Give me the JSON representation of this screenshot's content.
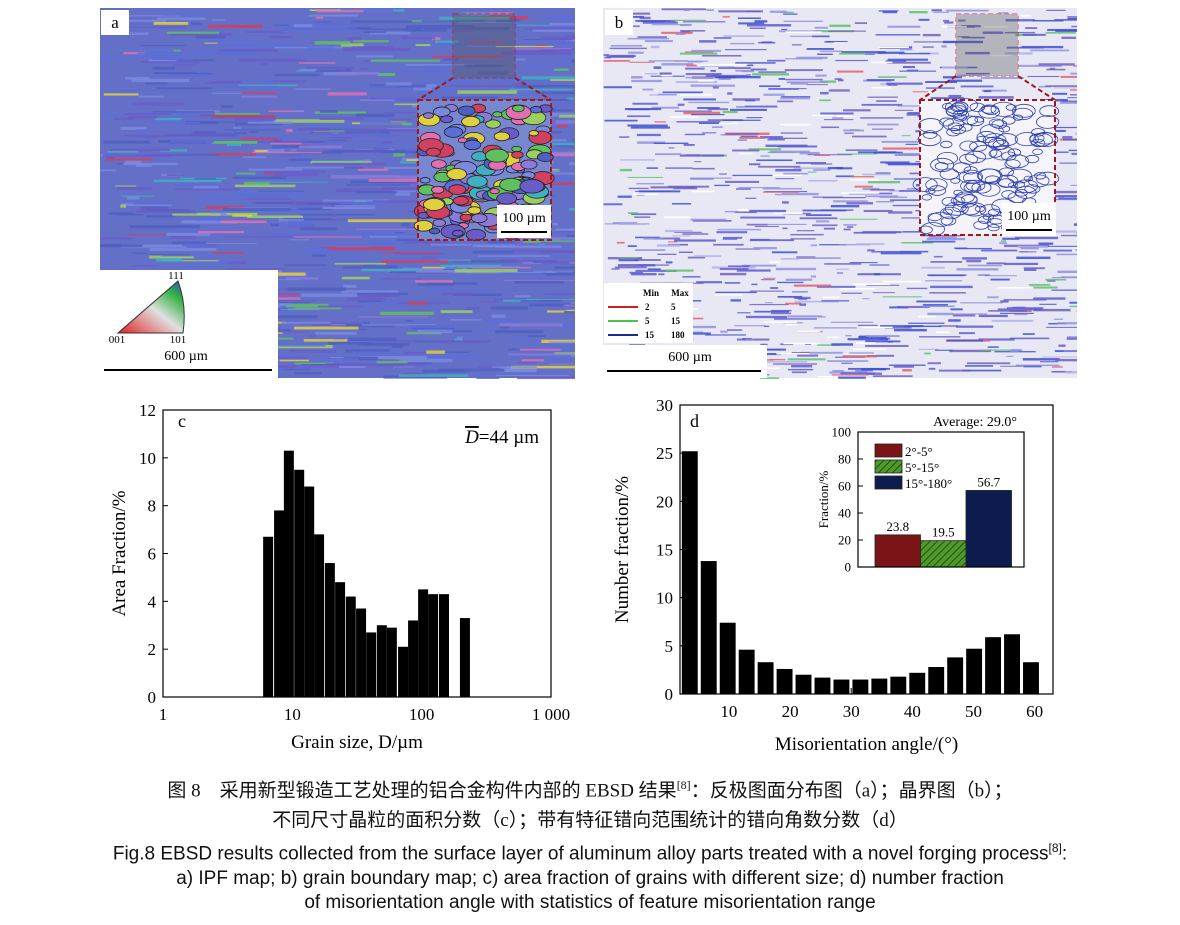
{
  "images": [
    {
      "label": "a",
      "inset_scale": "100 µm",
      "scale": "600 µm",
      "ipf": [
        "111",
        "001",
        "101"
      ]
    },
    {
      "label": "b",
      "inset_scale": "100 µm",
      "scale": "600 µm",
      "legend": {
        "header": [
          "Min",
          "Max"
        ],
        "rows": [
          [
            "2",
            "5"
          ],
          [
            "5",
            "15"
          ],
          [
            "15",
            "180"
          ]
        ]
      }
    }
  ],
  "chart_data": [
    {
      "type": "bar",
      "panel": "c",
      "xscale": "log",
      "annotation": {
        "symbol": "D",
        "text": "=44 µm"
      },
      "x_label": "Grain size, D/µm",
      "y_label": "Area Fraction/%",
      "x": [
        6.5,
        7.9,
        9.4,
        11.3,
        13.5,
        16.1,
        19.5,
        23.4,
        28.3,
        34.0,
        40.7,
        49.2,
        58.8,
        71.8,
        85.8,
        102.6,
        122.6,
        148.8,
        216
      ],
      "values": [
        6.7,
        7.8,
        10.3,
        9.5,
        8.8,
        6.8,
        5.6,
        4.8,
        4.2,
        3.7,
        2.7,
        3.0,
        2.9,
        2.1,
        3.2,
        4.5,
        4.3,
        4.3,
        3.3
      ],
      "color": "#000000",
      "xlim": [
        1,
        1000
      ],
      "xticks": [
        1,
        10,
        100,
        {
          "value": 1000,
          "label": "1 000"
        }
      ],
      "ylim": [
        0,
        12
      ],
      "yticks": [
        0,
        2,
        4,
        6,
        8,
        10,
        12
      ]
    },
    {
      "type": "bar",
      "panel": "d",
      "xscale": "linear",
      "x_label": "Misorientation angle/(°)",
      "y_label": "Number fraction/%",
      "x": [
        3.6,
        6.7,
        9.8,
        12.9,
        16.0,
        19.1,
        22.2,
        25.3,
        28.4,
        31.5,
        34.6,
        37.7,
        40.8,
        43.9,
        47.0,
        50.1,
        53.2,
        56.3,
        59.4
      ],
      "values": [
        25.2,
        13.8,
        7.4,
        4.6,
        3.3,
        2.6,
        2.0,
        1.7,
        1.5,
        1.5,
        1.6,
        1.8,
        2.2,
        2.8,
        3.8,
        4.7,
        5.9,
        6.2,
        3.3
      ],
      "color": "#000000",
      "xlim": [
        2,
        63
      ],
      "xticks": [
        10,
        20,
        30,
        40,
        50,
        60
      ],
      "ylim": [
        0,
        30
      ],
      "yticks": [
        0,
        5,
        10,
        15,
        20,
        25,
        30
      ]
    },
    {
      "type": "category-bar",
      "title": "Average: 29.0°",
      "y_label": "Fraction/%",
      "categories": [
        "2°-5°",
        "5°-15°",
        "15°-180°"
      ],
      "values": [
        23.8,
        19.5,
        56.7
      ],
      "colors": [
        "#7b1416",
        "#4f9a2a",
        "#0d1b4f"
      ],
      "hatched": [
        false,
        true,
        false
      ],
      "ylim": [
        0,
        100
      ],
      "yticks": [
        0,
        20,
        40,
        60,
        80,
        100
      ]
    }
  ],
  "caption": {
    "zh": [
      "图 8　采用新型锻造工艺处理的铝合金构件内部的 EBSD 结果",
      "[8]",
      "：反极图面分布图（a）；晶界图（b）；",
      "不同尺寸晶粒的面积分数（c）；带有特征错向范围统计的错向角数分数（d）"
    ],
    "en": [
      "Fig.8 EBSD results collected from the surface layer of aluminum alloy parts treated with a novel forging process",
      "[8]",
      ":",
      "a) IPF map; b) grain boundary map; c) area fraction of grains with different size; d) number fraction",
      "of misorientation angle with statistics of feature misorientation range"
    ]
  }
}
